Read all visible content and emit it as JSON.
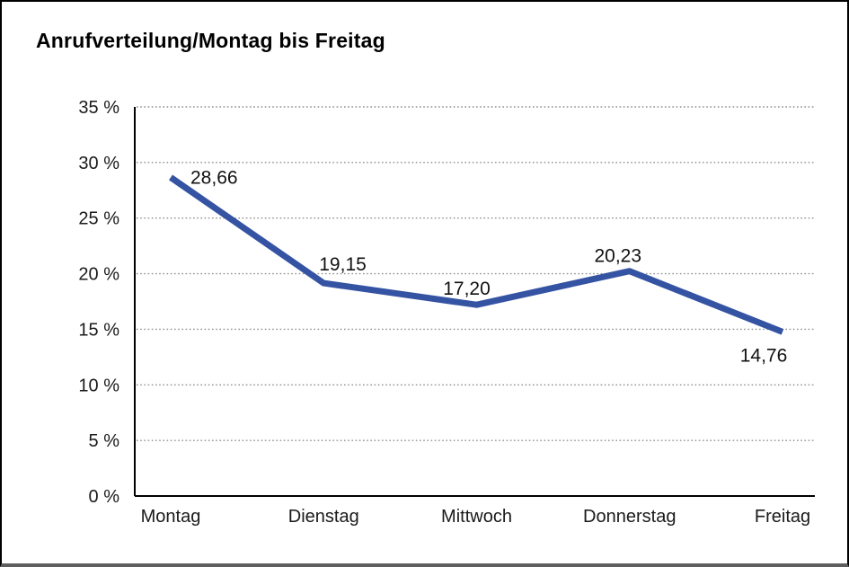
{
  "header": {
    "title": "Anrufverteilung/Montag bis Freitag"
  },
  "chart_data": {
    "type": "line",
    "title": "Anrufverteilung/Montag bis Freitag",
    "categories": [
      "Montag",
      "Dienstag",
      "Mittwoch",
      "Donnerstag",
      "Freitag"
    ],
    "series": [
      {
        "name": "Anrufverteilung",
        "values": [
          28.66,
          19.15,
          17.2,
          20.23,
          14.76
        ]
      }
    ],
    "point_labels": [
      "28,66",
      "19,15",
      "17,20",
      "20,23",
      "14,76"
    ],
    "xlabel": "",
    "ylabel": "",
    "ylim": [
      0,
      35
    ],
    "ytick_step": 5,
    "ytick_labels": [
      "0 %",
      "5 %",
      "10 %",
      "15 %",
      "20 %",
      "25 %",
      "30 %",
      "35 %"
    ],
    "grid": "horizontal-dotted",
    "legend_position": "none",
    "line_color": "#3553A3",
    "grid_color": "#8f8f8f",
    "axis_color": "#000000",
    "text_color": "#1a1a1a"
  }
}
